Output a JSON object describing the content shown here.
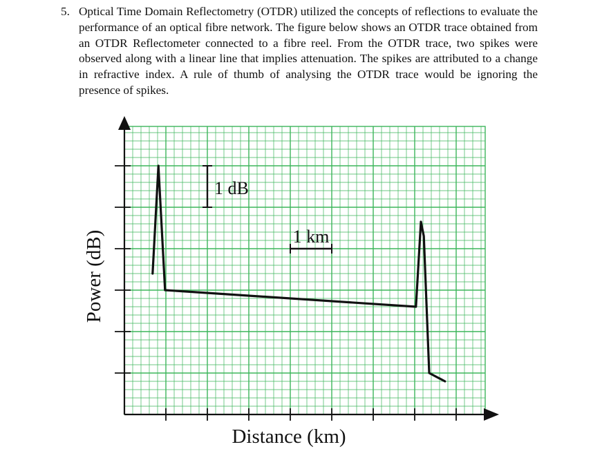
{
  "question": {
    "number": "5.",
    "text": "Optical Time Domain Reflectometry (OTDR) utilized the concepts of reflections to evaluate the performance of an optical fibre network. The figure below shows an OTDR trace obtained from an OTDR Reflectometer connected to a fibre reel. From the OTDR trace, two spikes were observed along with a linear line that implies attenuation. The spikes are attributed to a change in refractive index. A rule of thumb of analysing the OTDR trace would be ignoring the presence of spikes."
  },
  "chart_data": {
    "type": "line",
    "title": "",
    "xlabel": "Distance (km)",
    "ylabel": "Power (dB)",
    "grid": true,
    "grid_color": "#3cb55a",
    "line_color": "#111111",
    "x_unit": "km",
    "y_unit": "dB",
    "xlim": [
      0,
      8.7
    ],
    "ylim": [
      0,
      6.95
    ],
    "x_ticks": [
      1,
      2,
      3,
      4,
      5,
      6,
      7,
      8
    ],
    "y_ticks": [
      1,
      2,
      3,
      4,
      5,
      6
    ],
    "scale_bars": [
      {
        "label": "1 dB",
        "orientation": "vertical",
        "at": [
          2,
          5.5
        ]
      },
      {
        "label": "1 km",
        "orientation": "horizontal",
        "at": [
          4,
          4
        ]
      }
    ],
    "series": [
      {
        "x": [
          0.68,
          0.82,
          0.98,
          7.03,
          7.15,
          7.22,
          7.35,
          7.73
        ],
        "y": [
          3.4,
          6.0,
          3.0,
          2.6,
          4.65,
          4.3,
          1.0,
          0.8
        ]
      }
    ]
  }
}
